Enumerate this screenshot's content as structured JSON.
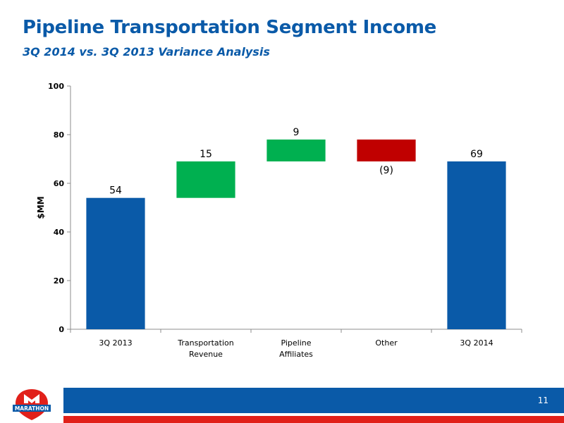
{
  "header": {
    "title": "Pipeline Transportation Segment Income",
    "subtitle": "3Q 2014 vs. 3Q 2013 Variance Analysis"
  },
  "chart_data": {
    "type": "bar",
    "subtype": "waterfall",
    "categories": [
      "3Q 2013",
      "Transportation Revenue",
      "Pipeline Affiliates",
      "Other",
      "3Q 2014"
    ],
    "category_lines": [
      [
        "3Q 2013"
      ],
      [
        "Transportation",
        "Revenue"
      ],
      [
        "Pipeline",
        "Affiliates"
      ],
      [
        "Other"
      ],
      [
        "3Q 2014"
      ]
    ],
    "values": [
      54,
      15,
      9,
      -9,
      69
    ],
    "bar_kind": [
      "total",
      "delta",
      "delta",
      "delta",
      "total"
    ],
    "data_labels": [
      "54",
      "15",
      "9",
      "(9)",
      "69"
    ],
    "ylabel": "$MM",
    "ylim": [
      0,
      100
    ],
    "yticks": [
      0,
      20,
      40,
      60,
      80,
      100
    ],
    "grid": false,
    "colors": {
      "total": "#0a5aa8",
      "increase": "#00b050",
      "decrease": "#c00000"
    }
  },
  "footer": {
    "page_number": "11",
    "logo_text": "MARATHON",
    "colors": {
      "blue": "#0a5aa8",
      "red": "#e1201a"
    }
  }
}
